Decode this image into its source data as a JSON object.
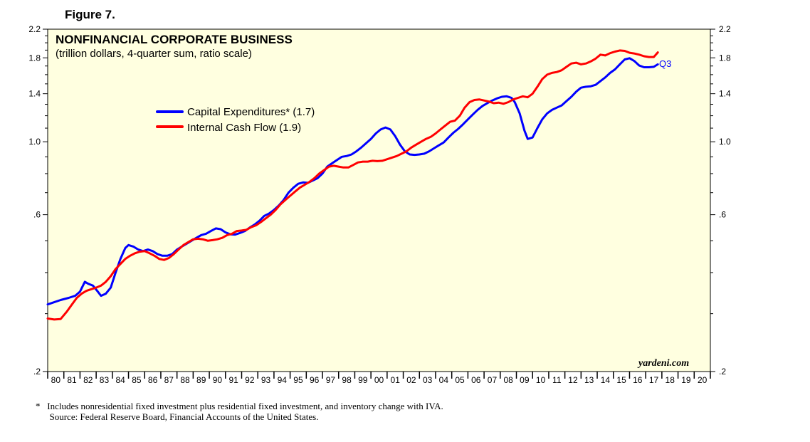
{
  "figure_label": "Figure 7.",
  "colors": {
    "plot_bg": "#ffffe0",
    "capex": "#0000ff",
    "cashflow": "#ff0000"
  },
  "chart_data": {
    "type": "line",
    "title": "NONFINANCIAL CORPORATE BUSINESS",
    "subtitle": "(trillion dollars, 4-quarter sum, ratio scale)",
    "y_scale": "log",
    "ylim": [
      0.2,
      2.2
    ],
    "y_ticks_left": [
      "2.2",
      "1.8",
      "1.4",
      "1.0",
      ".6",
      ".2"
    ],
    "y_ticks_right": [
      "2.2",
      "1.8",
      "1.4",
      "1.0",
      ".6",
      ".2"
    ],
    "y_tick_values": [
      2.2,
      1.8,
      1.4,
      1.0,
      0.6,
      0.2
    ],
    "x_range": [
      1980,
      2021
    ],
    "x_tick_labels": [
      "80",
      "81",
      "82",
      "83",
      "84",
      "85",
      "86",
      "87",
      "88",
      "89",
      "90",
      "91",
      "92",
      "93",
      "94",
      "95",
      "96",
      "97",
      "98",
      "99",
      "00",
      "01",
      "02",
      "03",
      "04",
      "05",
      "06",
      "07",
      "08",
      "09",
      "10",
      "11",
      "12",
      "13",
      "14",
      "15",
      "16",
      "17",
      "18",
      "19",
      "20"
    ],
    "legend_position": "upper-left",
    "series": [
      {
        "name": "Capital Expenditures* (1.7)",
        "key": "capex",
        "points": [
          [
            1980.0,
            0.32
          ],
          [
            1980.4,
            0.325
          ],
          [
            1980.8,
            0.33
          ],
          [
            1981.3,
            0.335
          ],
          [
            1981.7,
            0.34
          ],
          [
            1982.0,
            0.35
          ],
          [
            1982.3,
            0.375
          ],
          [
            1982.5,
            0.37
          ],
          [
            1982.8,
            0.365
          ],
          [
            1983.1,
            0.35
          ],
          [
            1983.3,
            0.34
          ],
          [
            1983.6,
            0.345
          ],
          [
            1983.9,
            0.36
          ],
          [
            1984.2,
            0.4
          ],
          [
            1984.5,
            0.44
          ],
          [
            1984.8,
            0.475
          ],
          [
            1985.0,
            0.485
          ],
          [
            1985.3,
            0.48
          ],
          [
            1985.6,
            0.47
          ],
          [
            1985.9,
            0.465
          ],
          [
            1986.2,
            0.47
          ],
          [
            1986.5,
            0.465
          ],
          [
            1986.8,
            0.455
          ],
          [
            1987.1,
            0.45
          ],
          [
            1987.4,
            0.45
          ],
          [
            1987.7,
            0.455
          ],
          [
            1988.0,
            0.47
          ],
          [
            1988.3,
            0.48
          ],
          [
            1988.6,
            0.49
          ],
          [
            1988.9,
            0.5
          ],
          [
            1989.2,
            0.51
          ],
          [
            1989.5,
            0.52
          ],
          [
            1989.8,
            0.525
          ],
          [
            1990.1,
            0.535
          ],
          [
            1990.4,
            0.545
          ],
          [
            1990.7,
            0.542
          ],
          [
            1991.0,
            0.53
          ],
          [
            1991.3,
            0.523
          ],
          [
            1991.6,
            0.522
          ],
          [
            1991.9,
            0.528
          ],
          [
            1992.2,
            0.535
          ],
          [
            1992.5,
            0.548
          ],
          [
            1992.8,
            0.56
          ],
          [
            1993.1,
            0.575
          ],
          [
            1993.4,
            0.595
          ],
          [
            1993.7,
            0.605
          ],
          [
            1994.0,
            0.62
          ],
          [
            1994.3,
            0.64
          ],
          [
            1994.6,
            0.665
          ],
          [
            1994.9,
            0.7
          ],
          [
            1995.2,
            0.725
          ],
          [
            1995.5,
            0.745
          ],
          [
            1995.8,
            0.752
          ],
          [
            1996.1,
            0.75
          ],
          [
            1996.4,
            0.762
          ],
          [
            1996.7,
            0.775
          ],
          [
            1997.0,
            0.8
          ],
          [
            1997.3,
            0.84
          ],
          [
            1997.6,
            0.86
          ],
          [
            1997.9,
            0.88
          ],
          [
            1998.2,
            0.9
          ],
          [
            1998.5,
            0.905
          ],
          [
            1998.8,
            0.915
          ],
          [
            1999.1,
            0.935
          ],
          [
            1999.4,
            0.96
          ],
          [
            1999.7,
            0.99
          ],
          [
            2000.0,
            1.02
          ],
          [
            2000.3,
            1.06
          ],
          [
            2000.6,
            1.09
          ],
          [
            2000.9,
            1.105
          ],
          [
            2001.2,
            1.09
          ],
          [
            2001.5,
            1.04
          ],
          [
            2001.8,
            0.98
          ],
          [
            2002.1,
            0.935
          ],
          [
            2002.4,
            0.915
          ],
          [
            2002.7,
            0.912
          ],
          [
            2003.0,
            0.915
          ],
          [
            2003.3,
            0.92
          ],
          [
            2003.6,
            0.935
          ],
          [
            2003.9,
            0.955
          ],
          [
            2004.2,
            0.975
          ],
          [
            2004.5,
            0.995
          ],
          [
            2004.8,
            1.03
          ],
          [
            2005.1,
            1.065
          ],
          [
            2005.4,
            1.095
          ],
          [
            2005.7,
            1.13
          ],
          [
            2006.0,
            1.17
          ],
          [
            2006.3,
            1.21
          ],
          [
            2006.6,
            1.25
          ],
          [
            2006.9,
            1.285
          ],
          [
            2007.2,
            1.31
          ],
          [
            2007.5,
            1.335
          ],
          [
            2007.8,
            1.355
          ],
          [
            2008.1,
            1.37
          ],
          [
            2008.4,
            1.375
          ],
          [
            2008.7,
            1.36
          ],
          [
            2008.9,
            1.32
          ],
          [
            2009.2,
            1.22
          ],
          [
            2009.5,
            1.08
          ],
          [
            2009.7,
            1.02
          ],
          [
            2010.0,
            1.03
          ],
          [
            2010.3,
            1.1
          ],
          [
            2010.6,
            1.17
          ],
          [
            2010.9,
            1.22
          ],
          [
            2011.2,
            1.25
          ],
          [
            2011.5,
            1.27
          ],
          [
            2011.8,
            1.29
          ],
          [
            2012.1,
            1.33
          ],
          [
            2012.4,
            1.37
          ],
          [
            2012.7,
            1.42
          ],
          [
            2013.0,
            1.46
          ],
          [
            2013.3,
            1.47
          ],
          [
            2013.6,
            1.475
          ],
          [
            2013.9,
            1.49
          ],
          [
            2014.2,
            1.53
          ],
          [
            2014.5,
            1.57
          ],
          [
            2014.8,
            1.62
          ],
          [
            2015.1,
            1.66
          ],
          [
            2015.4,
            1.72
          ],
          [
            2015.7,
            1.78
          ],
          [
            2016.0,
            1.795
          ],
          [
            2016.3,
            1.76
          ],
          [
            2016.6,
            1.705
          ],
          [
            2016.9,
            1.685
          ],
          [
            2017.2,
            1.685
          ],
          [
            2017.5,
            1.69
          ],
          [
            2017.75,
            1.72
          ]
        ]
      },
      {
        "name": "Internal Cash Flow (1.9)",
        "key": "cashflow",
        "points": [
          [
            1980.0,
            0.29
          ],
          [
            1980.4,
            0.288
          ],
          [
            1980.8,
            0.289
          ],
          [
            1981.2,
            0.305
          ],
          [
            1981.5,
            0.32
          ],
          [
            1981.8,
            0.335
          ],
          [
            1982.1,
            0.345
          ],
          [
            1982.4,
            0.352
          ],
          [
            1982.7,
            0.356
          ],
          [
            1983.0,
            0.36
          ],
          [
            1983.3,
            0.365
          ],
          [
            1983.6,
            0.375
          ],
          [
            1983.9,
            0.39
          ],
          [
            1984.2,
            0.41
          ],
          [
            1984.5,
            0.425
          ],
          [
            1984.8,
            0.44
          ],
          [
            1985.1,
            0.45
          ],
          [
            1985.4,
            0.458
          ],
          [
            1985.7,
            0.463
          ],
          [
            1986.0,
            0.465
          ],
          [
            1986.3,
            0.458
          ],
          [
            1986.6,
            0.45
          ],
          [
            1986.9,
            0.44
          ],
          [
            1987.2,
            0.437
          ],
          [
            1987.5,
            0.443
          ],
          [
            1987.8,
            0.455
          ],
          [
            1988.1,
            0.47
          ],
          [
            1988.4,
            0.485
          ],
          [
            1988.7,
            0.495
          ],
          [
            1989.0,
            0.505
          ],
          [
            1989.3,
            0.507
          ],
          [
            1989.6,
            0.505
          ],
          [
            1989.9,
            0.5
          ],
          [
            1990.2,
            0.502
          ],
          [
            1990.5,
            0.505
          ],
          [
            1990.8,
            0.51
          ],
          [
            1991.1,
            0.52
          ],
          [
            1991.4,
            0.525
          ],
          [
            1991.7,
            0.535
          ],
          [
            1992.0,
            0.537
          ],
          [
            1992.3,
            0.54
          ],
          [
            1992.6,
            0.55
          ],
          [
            1992.9,
            0.557
          ],
          [
            1993.2,
            0.57
          ],
          [
            1993.5,
            0.585
          ],
          [
            1993.8,
            0.6
          ],
          [
            1994.1,
            0.62
          ],
          [
            1994.4,
            0.645
          ],
          [
            1994.7,
            0.665
          ],
          [
            1995.0,
            0.685
          ],
          [
            1995.3,
            0.705
          ],
          [
            1995.6,
            0.725
          ],
          [
            1995.9,
            0.74
          ],
          [
            1996.2,
            0.755
          ],
          [
            1996.5,
            0.775
          ],
          [
            1996.8,
            0.8
          ],
          [
            1997.1,
            0.82
          ],
          [
            1997.4,
            0.84
          ],
          [
            1997.7,
            0.845
          ],
          [
            1998.0,
            0.84
          ],
          [
            1998.3,
            0.835
          ],
          [
            1998.6,
            0.835
          ],
          [
            1998.9,
            0.85
          ],
          [
            1999.2,
            0.865
          ],
          [
            1999.5,
            0.87
          ],
          [
            1999.8,
            0.87
          ],
          [
            2000.1,
            0.875
          ],
          [
            2000.4,
            0.873
          ],
          [
            2000.7,
            0.875
          ],
          [
            2001.0,
            0.885
          ],
          [
            2001.3,
            0.895
          ],
          [
            2001.6,
            0.905
          ],
          [
            2001.9,
            0.92
          ],
          [
            2002.2,
            0.935
          ],
          [
            2002.5,
            0.96
          ],
          [
            2002.8,
            0.98
          ],
          [
            2003.1,
            1.0
          ],
          [
            2003.4,
            1.02
          ],
          [
            2003.7,
            1.035
          ],
          [
            2004.0,
            1.06
          ],
          [
            2004.3,
            1.09
          ],
          [
            2004.6,
            1.12
          ],
          [
            2004.9,
            1.15
          ],
          [
            2005.2,
            1.16
          ],
          [
            2005.5,
            1.2
          ],
          [
            2005.8,
            1.27
          ],
          [
            2006.1,
            1.32
          ],
          [
            2006.4,
            1.34
          ],
          [
            2006.7,
            1.345
          ],
          [
            2007.0,
            1.335
          ],
          [
            2007.3,
            1.325
          ],
          [
            2007.6,
            1.31
          ],
          [
            2007.9,
            1.315
          ],
          [
            2008.2,
            1.305
          ],
          [
            2008.5,
            1.32
          ],
          [
            2008.8,
            1.345
          ],
          [
            2009.1,
            1.36
          ],
          [
            2009.4,
            1.375
          ],
          [
            2009.7,
            1.365
          ],
          [
            2010.0,
            1.4
          ],
          [
            2010.3,
            1.47
          ],
          [
            2010.6,
            1.55
          ],
          [
            2010.9,
            1.6
          ],
          [
            2011.2,
            1.62
          ],
          [
            2011.5,
            1.63
          ],
          [
            2011.8,
            1.65
          ],
          [
            2012.1,
            1.69
          ],
          [
            2012.4,
            1.73
          ],
          [
            2012.7,
            1.74
          ],
          [
            2013.0,
            1.72
          ],
          [
            2013.3,
            1.73
          ],
          [
            2013.6,
            1.755
          ],
          [
            2013.9,
            1.79
          ],
          [
            2014.2,
            1.84
          ],
          [
            2014.5,
            1.83
          ],
          [
            2014.8,
            1.86
          ],
          [
            2015.1,
            1.88
          ],
          [
            2015.4,
            1.895
          ],
          [
            2015.7,
            1.89
          ],
          [
            2016.0,
            1.865
          ],
          [
            2016.3,
            1.855
          ],
          [
            2016.6,
            1.84
          ],
          [
            2016.9,
            1.82
          ],
          [
            2017.2,
            1.81
          ],
          [
            2017.5,
            1.81
          ],
          [
            2017.75,
            1.87
          ]
        ]
      }
    ],
    "legend": [
      "Capital Expenditures* (1.7)",
      "Internal Cash Flow (1.9)"
    ],
    "annotation_q3": "Q3",
    "watermark": "yardeni.com"
  },
  "footnotes": {
    "line1": "*   Includes nonresidential fixed investment plus residential fixed investment, and inventory change with IVA.",
    "line2": "      Source: Federal Reserve Board, Financial Accounts of the United States."
  }
}
